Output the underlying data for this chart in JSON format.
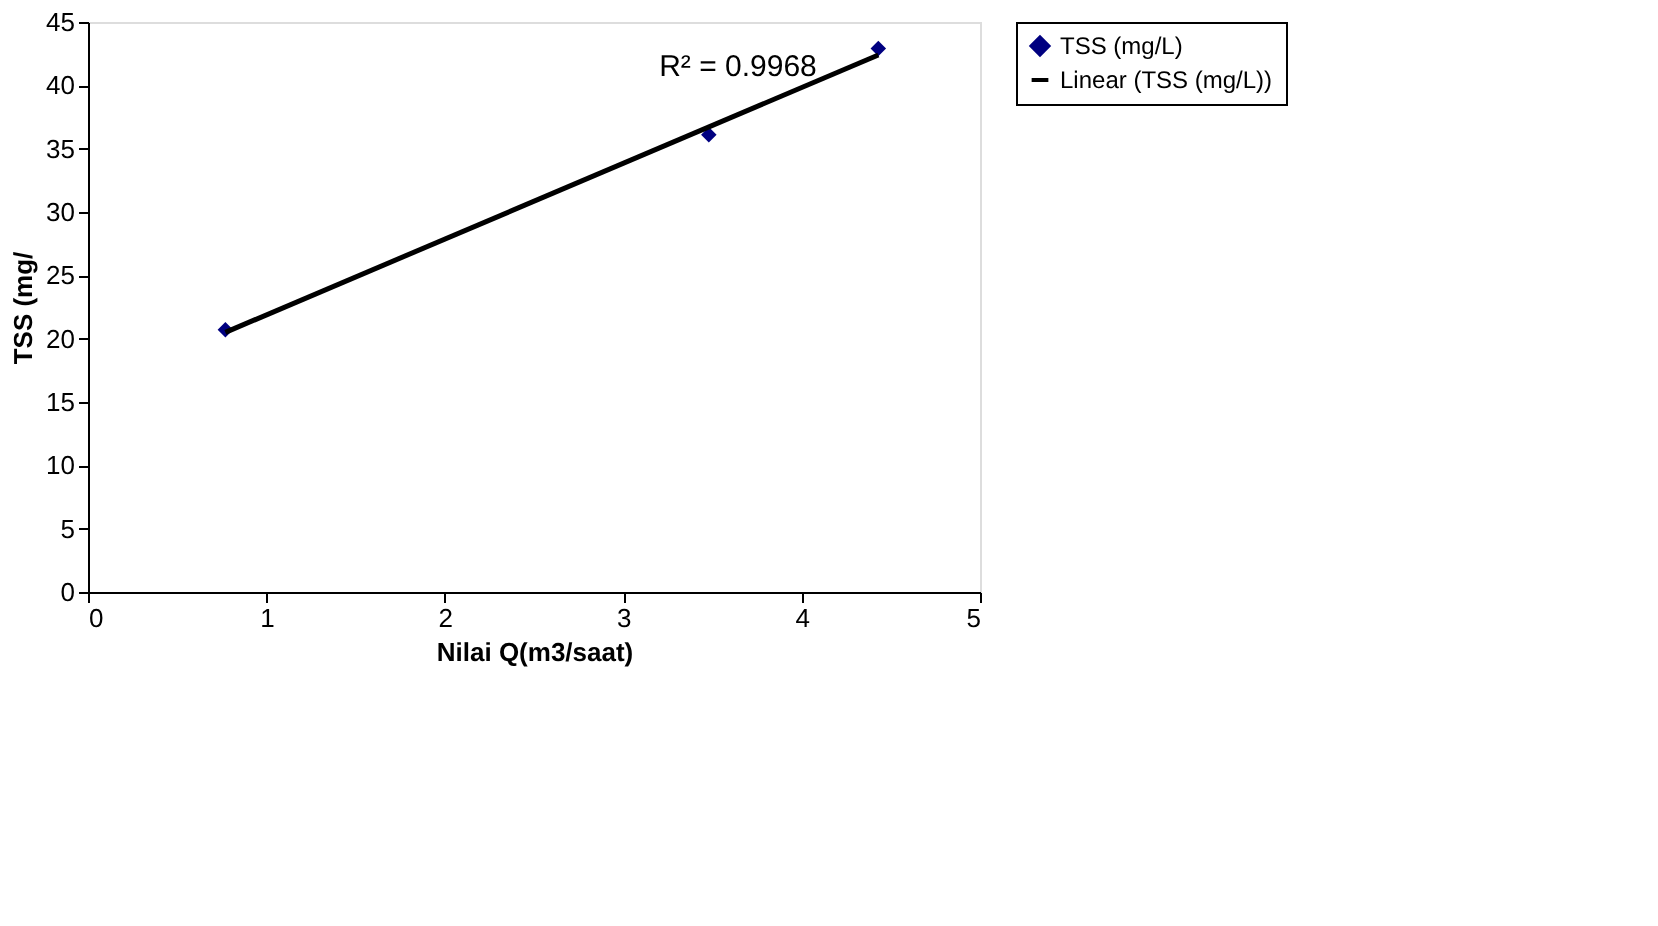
{
  "chart_data": {
    "type": "scatter",
    "xlabel": "Nilai Q(m3/saat)",
    "ylabel": "TSS (mg/",
    "xlim": [
      0,
      5
    ],
    "xticks": [
      0,
      1,
      2,
      3,
      4,
      5
    ],
    "ylim": [
      0,
      45
    ],
    "yticks": [
      0,
      5,
      10,
      15,
      20,
      25,
      30,
      35,
      40,
      45
    ],
    "series": [
      {
        "name": "TSS (mg/L)",
        "color": "#000080",
        "marker": "diamond",
        "x": [
          0.77,
          3.48,
          4.43
        ],
        "values": [
          20.7,
          36.1,
          42.9
        ]
      },
      {
        "name": "Linear (TSS (mg/L))",
        "type": "line",
        "color": "#000000",
        "line_style": "solid",
        "x": [
          0.77,
          4.43
        ],
        "values": [
          20.5,
          42.4
        ]
      }
    ],
    "annotations": [
      "R² = 0.9968"
    ],
    "grid": false,
    "legend": "right"
  }
}
